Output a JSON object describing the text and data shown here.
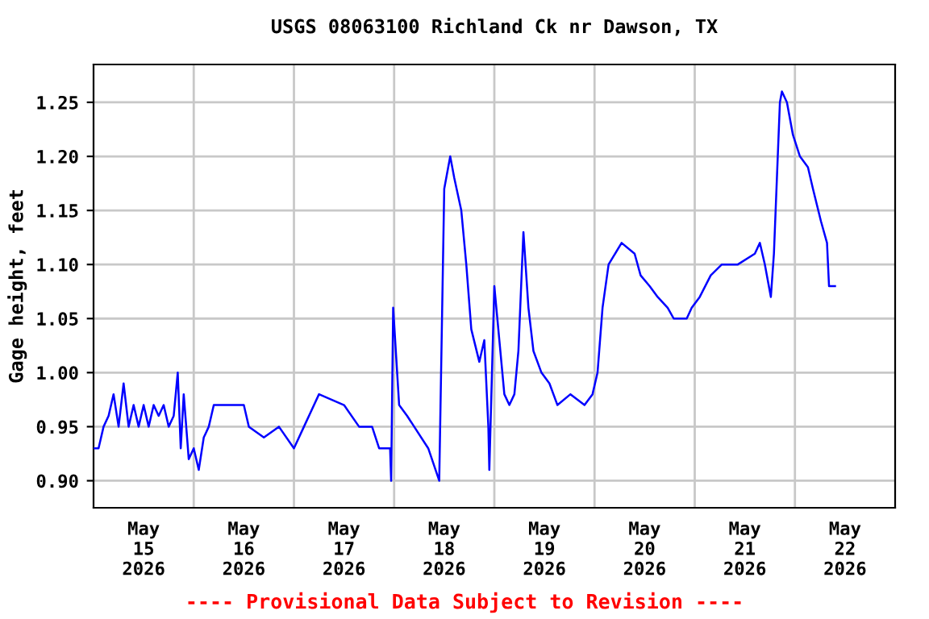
{
  "chart_data": {
    "type": "line",
    "title": "USGS 08063100 Richland Ck nr Dawson, TX",
    "ylabel": "Gage height, feet",
    "annotations": [
      "---- Provisional Data Subject to Revision ----"
    ],
    "xlim": [
      "2026-05-15T00:00",
      "2026-05-23T00:00"
    ],
    "xticks": [
      {
        "value": "2026-05-15T12:00",
        "label": "May\n15\n2026"
      },
      {
        "value": "2026-05-16T12:00",
        "label": "May\n16\n2026"
      },
      {
        "value": "2026-05-17T12:00",
        "label": "May\n17\n2026"
      },
      {
        "value": "2026-05-18T12:00",
        "label": "May\n18\n2026"
      },
      {
        "value": "2026-05-19T12:00",
        "label": "May\n19\n2026"
      },
      {
        "value": "2026-05-20T12:00",
        "label": "May\n20\n2026"
      },
      {
        "value": "2026-05-21T12:00",
        "label": "May\n21\n2026"
      },
      {
        "value": "2026-05-22T12:00",
        "label": "May\n22\n2026"
      },
      {
        "value": "2026-05-16T00:00",
        "label": null
      },
      {
        "value": "2026-05-17T00:00",
        "label": null
      },
      {
        "value": "2026-05-18T00:00",
        "label": null
      },
      {
        "value": "2026-05-19T00:00",
        "label": null
      },
      {
        "value": "2026-05-20T00:00",
        "label": null
      },
      {
        "value": "2026-05-21T00:00",
        "label": null
      },
      {
        "value": "2026-05-22T00:00",
        "label": null
      }
    ],
    "ylim": [
      0.875,
      1.285
    ],
    "yticks": [
      {
        "value": 0.9,
        "label": "0.90"
      },
      {
        "value": 0.95,
        "label": "0.95"
      },
      {
        "value": 1.0,
        "label": "1.00"
      },
      {
        "value": 1.05,
        "label": "1.05"
      },
      {
        "value": 1.1,
        "label": "1.10"
      },
      {
        "value": 1.15,
        "label": "1.15"
      },
      {
        "value": 1.2,
        "label": "1.20"
      },
      {
        "value": 1.25,
        "label": "1.25"
      }
    ],
    "grid": true,
    "line_style": "solid",
    "marker": "none",
    "series": [
      {
        "color": "#0000ff",
        "x": [
          "2026-05-15T00:00",
          "2026-05-15T01:12",
          "2026-05-15T02:24",
          "2026-05-15T03:36",
          "2026-05-15T04:48",
          "2026-05-15T06:00",
          "2026-05-15T07:12",
          "2026-05-15T08:24",
          "2026-05-15T09:36",
          "2026-05-15T10:48",
          "2026-05-15T12:00",
          "2026-05-15T13:12",
          "2026-05-15T14:24",
          "2026-05-15T15:36",
          "2026-05-15T16:48",
          "2026-05-15T18:00",
          "2026-05-15T19:12",
          "2026-05-15T20:10",
          "2026-05-15T20:53",
          "2026-05-15T21:36",
          "2026-05-15T22:48",
          "2026-05-16T00:00",
          "2026-05-16T01:12",
          "2026-05-16T02:24",
          "2026-05-16T03:36",
          "2026-05-16T04:48",
          "2026-05-16T12:00",
          "2026-05-16T13:12",
          "2026-05-16T16:48",
          "2026-05-16T20:24",
          "2026-05-17T00:00",
          "2026-05-17T02:24",
          "2026-05-17T06:00",
          "2026-05-17T12:00",
          "2026-05-17T15:36",
          "2026-05-17T18:43",
          "2026-05-17T20:24",
          "2026-05-17T23:02",
          "2026-05-17T23:17",
          "2026-05-17T23:46",
          "2026-05-18T01:12",
          "2026-05-18T03:07",
          "2026-05-18T04:48",
          "2026-05-18T08:10",
          "2026-05-18T10:48",
          "2026-05-18T12:00",
          "2026-05-18T13:26",
          "2026-05-18T14:24",
          "2026-05-18T16:05",
          "2026-05-18T17:17",
          "2026-05-18T18:29",
          "2026-05-18T20:24",
          "2026-05-18T21:36",
          "2026-05-18T22:34",
          "2026-05-18T22:48",
          "2026-05-19T00:00",
          "2026-05-19T01:12",
          "2026-05-19T02:24",
          "2026-05-19T03:36",
          "2026-05-19T04:48",
          "2026-05-19T05:46",
          "2026-05-19T06:58",
          "2026-05-19T08:10",
          "2026-05-19T09:22",
          "2026-05-19T11:17",
          "2026-05-19T13:12",
          "2026-05-19T15:07",
          "2026-05-19T18:14",
          "2026-05-19T21:36",
          "2026-05-19T23:31",
          "2026-05-20T00:43",
          "2026-05-20T01:55",
          "2026-05-20T03:22",
          "2026-05-20T06:29",
          "2026-05-20T09:36",
          "2026-05-20T11:02",
          "2026-05-20T13:12",
          "2026-05-20T15:07",
          "2026-05-20T17:31",
          "2026-05-20T18:58",
          "2026-05-20T22:05",
          "2026-05-20T23:17",
          "2026-05-21T01:12",
          "2026-05-21T03:50",
          "2026-05-21T06:29",
          "2026-05-21T10:19",
          "2026-05-21T14:24",
          "2026-05-21T15:36",
          "2026-05-21T16:48",
          "2026-05-21T18:14",
          "2026-05-21T18:58",
          "2026-05-21T19:41",
          "2026-05-21T20:24",
          "2026-05-21T20:53",
          "2026-05-21T22:05",
          "2026-05-21T23:31",
          "2026-05-22T01:12",
          "2026-05-22T03:07",
          "2026-05-22T04:19",
          "2026-05-22T06:14",
          "2026-05-22T07:41",
          "2026-05-22T08:10",
          "2026-05-22T09:36"
        ],
        "values": [
          0.93,
          0.93,
          0.95,
          0.96,
          0.98,
          0.95,
          0.99,
          0.95,
          0.97,
          0.95,
          0.97,
          0.95,
          0.97,
          0.96,
          0.97,
          0.95,
          0.96,
          1.0,
          0.93,
          0.98,
          0.92,
          0.93,
          0.91,
          0.94,
          0.95,
          0.97,
          0.97,
          0.95,
          0.94,
          0.95,
          0.93,
          0.95,
          0.98,
          0.97,
          0.95,
          0.95,
          0.93,
          0.93,
          0.9,
          1.06,
          0.97,
          0.96,
          0.95,
          0.93,
          0.9,
          1.17,
          1.2,
          1.18,
          1.15,
          1.1,
          1.04,
          1.01,
          1.03,
          0.95,
          0.91,
          1.08,
          1.03,
          0.98,
          0.97,
          0.98,
          1.02,
          1.13,
          1.06,
          1.02,
          1.0,
          0.99,
          0.97,
          0.98,
          0.97,
          0.98,
          1.0,
          1.06,
          1.1,
          1.12,
          1.11,
          1.09,
          1.08,
          1.07,
          1.06,
          1.05,
          1.05,
          1.06,
          1.07,
          1.09,
          1.1,
          1.1,
          1.11,
          1.12,
          1.1,
          1.07,
          1.11,
          1.18,
          1.25,
          1.26,
          1.25,
          1.22,
          1.2,
          1.19,
          1.17,
          1.14,
          1.12,
          1.08,
          1.08
        ]
      }
    ]
  }
}
